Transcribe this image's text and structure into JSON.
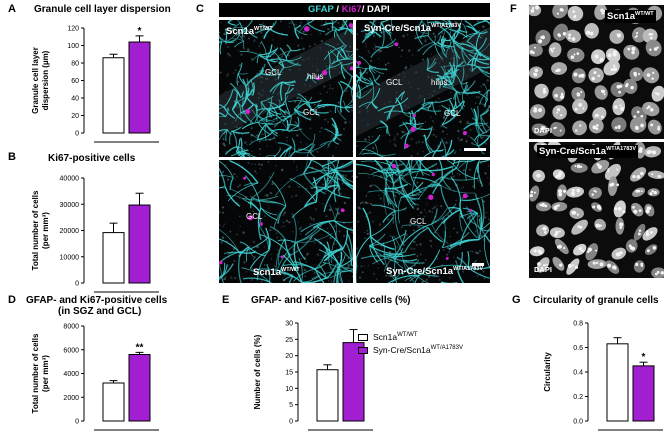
{
  "colors": {
    "wt": "#ffffff",
    "mut": "#a11fd1",
    "gfap": "#3ed0d0",
    "ki67": "#d020d0",
    "dapi": "#ffffff"
  },
  "panelA": {
    "letter": "A",
    "title": "Granule cell layer dispersion",
    "ylabel1": "Granule cell layer",
    "ylabel2": "dispersion (µm)",
    "sig": "*",
    "chart_data": {
      "type": "bar",
      "categories": [
        "Scn1a WT/WT",
        "Syn-Cre/Scn1a WT/A1783V"
      ],
      "values": [
        86,
        104
      ],
      "errors": [
        4,
        7
      ],
      "ylim": [
        0,
        120
      ],
      "yticks": [
        "0",
        "20",
        "40",
        "60",
        "80",
        "100",
        "120"
      ]
    }
  },
  "panelB": {
    "letter": "B",
    "title": "Ki67-positive cells",
    "ylabel1": "Total number of cells",
    "ylabel2": "(per mm³)",
    "chart_data": {
      "type": "bar",
      "categories": [
        "Scn1a WT/WT",
        "Syn-Cre/Scn1a WT/A1783V"
      ],
      "values": [
        19200,
        29700
      ],
      "errors": [
        3600,
        4500
      ],
      "ylim": [
        0,
        40000
      ],
      "yticks": [
        "0",
        "10000",
        "20000",
        "30000",
        "40000"
      ]
    }
  },
  "panelD": {
    "letter": "D",
    "title1": "GFAP- and Ki67-positive cells",
    "title2": "(in SGZ and GCL)",
    "ylabel1": "Total number of cells",
    "ylabel2": "(per mm³)",
    "sig": "**",
    "chart_data": {
      "type": "bar",
      "categories": [
        "Scn1a WT/WT",
        "Syn-Cre/Scn1a WT/A1783V"
      ],
      "values": [
        3200,
        5600
      ],
      "errors": [
        200,
        180
      ],
      "ylim": [
        0,
        8000
      ],
      "yticks": [
        "0",
        "2000",
        "4000",
        "6000",
        "8000"
      ]
    }
  },
  "panelE": {
    "letter": "E",
    "title": "GFAP- and Ki67-positive cells (%)",
    "ylabel1": "Number of cells (%)",
    "legend": [
      {
        "base": "Scn1a",
        "sup": "WT/WT"
      },
      {
        "base": "Syn-Cre/Scn1a",
        "sup": "WT/A1783V"
      }
    ],
    "chart_data": {
      "type": "bar",
      "categories": [
        "Scn1a WT/WT",
        "Syn-Cre/Scn1a WT/A1783V"
      ],
      "values": [
        15.7,
        24
      ],
      "errors": [
        1.5,
        4
      ],
      "ylim": [
        0,
        30
      ],
      "yticks": [
        "0",
        "5",
        "10",
        "15",
        "20",
        "25",
        "30"
      ]
    }
  },
  "panelG": {
    "letter": "G",
    "title": "Circularity of granule cells",
    "ylabel1": "Circularity",
    "sig": "*",
    "chart_data": {
      "type": "bar",
      "categories": [
        "Scn1a WT/WT",
        "Syn-Cre/Scn1a WT/A1783V"
      ],
      "values": [
        0.63,
        0.45
      ],
      "errors": [
        0.05,
        0.03
      ],
      "ylim": [
        0,
        0.8
      ],
      "yticks": [
        "0.0",
        "0.2",
        "0.4",
        "0.6",
        "0.8"
      ]
    }
  },
  "panelC": {
    "letter": "C",
    "header": {
      "gfap": "GFAP",
      "sep1": " / ",
      "ki67": "Ki67",
      "sep2": "/ ",
      "dapi": "DAPI"
    },
    "tl": {
      "base": "Scn1a",
      "sup": "WT/WT",
      "gcl1": "GCL",
      "hilus": "hilus",
      "gcl2": "GCL"
    },
    "tr": {
      "base": "Syn-Cre/Scn1a",
      "sup": "WT/A1783V",
      "gcl1": "GCL",
      "hilus": "hilus",
      "gcl2": "GCL"
    },
    "bl": {
      "base": "Scn1a",
      "sup": "WT/WT",
      "gcl": "GCL"
    },
    "br": {
      "base": "Syn-Cre/Scn1a",
      "sup": "WT/A1783V",
      "gcl": "GCL"
    }
  },
  "panelF": {
    "letter": "F",
    "top": {
      "base": "Scn1a",
      "sup": "WT/WT",
      "dapi": "DAPI"
    },
    "bottom": {
      "base": "Syn-Cre/Scn1a",
      "sup": "WT/A1783V",
      "dapi": "DAPI"
    }
  }
}
